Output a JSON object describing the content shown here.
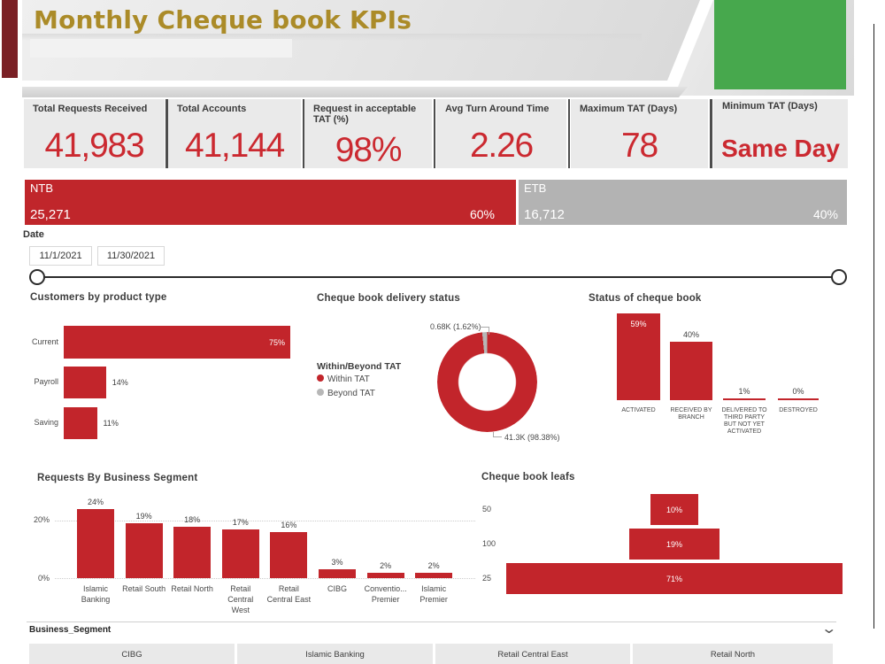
{
  "header": {
    "title": "Monthly Cheque book KPIs",
    "title_color": "#ab8b28",
    "accent_bar_color": "#7a2025",
    "green_block_color": "#47a84d"
  },
  "kpis": [
    {
      "label": "Total Requests Received",
      "value": "41,983"
    },
    {
      "label": "Total Accounts",
      "value": "41,144"
    },
    {
      "label": "Request in acceptable TAT (%)",
      "value": "98%"
    },
    {
      "label": "Avg Turn Around Time",
      "value": "2.26"
    },
    {
      "label": "Maximum TAT (Days)",
      "value": "78"
    },
    {
      "label": "Minimum TAT (Days)",
      "value": "Same Day"
    }
  ],
  "ntb_etb": {
    "left": {
      "label": "NTB",
      "value": "25,271",
      "pct": "60%",
      "color": "#c0262b"
    },
    "right": {
      "label": "ETB",
      "value": "16,712",
      "pct": "40%",
      "color": "#b3b3b3"
    }
  },
  "date_filter": {
    "label": "Date",
    "start": "11/1/2021",
    "end": "11/30/2021"
  },
  "chart_data": [
    {
      "id": "customers-by-product-type",
      "type": "bar",
      "title": "Customers by product type",
      "categories": [
        "Current",
        "Payroll",
        "Saving"
      ],
      "values": [
        75,
        14,
        11
      ],
      "value_labels": [
        "75%",
        "14%",
        "11%"
      ]
    },
    {
      "id": "cheque-book-delivery-status",
      "type": "pie",
      "title": "Cheque book delivery status",
      "legend_title": "Within/Beyond TAT",
      "series": [
        {
          "name": "Within TAT",
          "pct": 98.38,
          "label": "41.3K (98.38%)",
          "color": "#c2252b"
        },
        {
          "name": "Beyond TAT",
          "pct": 1.62,
          "label": "0.68K (1.62%)",
          "color": "#b7b7b7"
        }
      ]
    },
    {
      "id": "status-of-cheque-book",
      "type": "column",
      "title": "Status of cheque book",
      "categories": [
        "ACTIVATED",
        "RECEIVED BY BRANCH",
        "DELIVERED TO THIRD PARTY BUT NOT YET ACTIVATED",
        "DESTROYED"
      ],
      "category_lines": [
        [
          "ACTIVATED"
        ],
        [
          "RECEIVED BY",
          "BRANCH"
        ],
        [
          "DELIVERED TO",
          "THIRD PARTY",
          "BUT NOT YET",
          "ACTIVATED"
        ],
        [
          "DESTROYED"
        ]
      ],
      "values": [
        59,
        40,
        1,
        0
      ],
      "value_labels": [
        "59%",
        "40%",
        "1%",
        "0%"
      ]
    },
    {
      "id": "requests-by-business-segment",
      "type": "column",
      "title": "Requests By Business Segment",
      "categories": [
        "Islamic Banking",
        "Retail South",
        "Retail North",
        "Retail Central West",
        "Retail Central East",
        "CIBG",
        "Conventio... Premier",
        "Islamic Premier"
      ],
      "category_lines": [
        [
          "Islamic",
          "Banking"
        ],
        [
          "Retail South"
        ],
        [
          "Retail North"
        ],
        [
          "Retail",
          "Central",
          "West"
        ],
        [
          "Retail",
          "Central East"
        ],
        [
          "CIBG"
        ],
        [
          "Conventio...",
          "Premier"
        ],
        [
          "Islamic",
          "Premier"
        ]
      ],
      "values": [
        24,
        19,
        18,
        17,
        16,
        3,
        2,
        2
      ],
      "value_labels": [
        "24%",
        "19%",
        "18%",
        "17%",
        "16%",
        "3%",
        "2%",
        "2%"
      ],
      "ylim": [
        0,
        20
      ],
      "yticks": [
        "0%",
        "20%"
      ]
    },
    {
      "id": "cheque-book-leafs",
      "type": "funnel",
      "title": "Cheque book leafs",
      "categories": [
        "50",
        "100",
        "25"
      ],
      "values": [
        10,
        19,
        71
      ],
      "value_labels": [
        "10%",
        "19%",
        "71%"
      ]
    }
  ],
  "table": {
    "field_label": "Business_Segment",
    "columns": [
      "CIBG",
      "Islamic Banking",
      "Retail Central East",
      "Retail North"
    ]
  },
  "colors": {
    "brand_red": "#c2252b",
    "kpi_value_red": "#cb2930",
    "etb_gray": "#b3b3b3",
    "donut_gray": "#b7b7b7"
  }
}
